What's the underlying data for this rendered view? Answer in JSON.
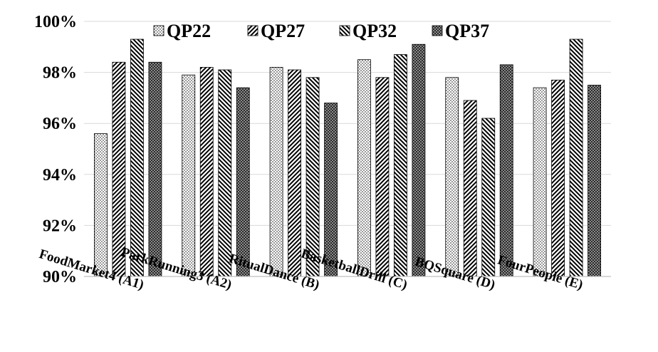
{
  "chart_data": {
    "type": "bar",
    "categories": [
      "FoodMarket4 (A1)",
      "ParkRunning3 (A2)",
      "RitualDance (B)",
      "BasketballDrill (C)",
      "BQSquare (D)",
      "FourPeople (E)"
    ],
    "series": [
      {
        "name": "QP22",
        "values": [
          95.6,
          97.9,
          98.2,
          98.5,
          97.8,
          97.4
        ],
        "pattern": "dots"
      },
      {
        "name": "QP27",
        "values": [
          98.4,
          98.2,
          98.1,
          97.8,
          96.9,
          97.7
        ],
        "pattern": "diag-up"
      },
      {
        "name": "QP32",
        "values": [
          99.3,
          98.1,
          97.8,
          98.7,
          96.2,
          99.3
        ],
        "pattern": "diag-down"
      },
      {
        "name": "QP37",
        "values": [
          98.4,
          97.4,
          96.8,
          99.1,
          98.3,
          97.5
        ],
        "pattern": "checker"
      }
    ],
    "y_tick_labels": [
      "90%",
      "92%",
      "94%",
      "96%",
      "98%",
      "100%"
    ],
    "ylim": [
      90,
      100
    ],
    "y_step": 2,
    "grid": true,
    "legend_position": "top",
    "title": "",
    "xlabel": "",
    "ylabel": ""
  }
}
